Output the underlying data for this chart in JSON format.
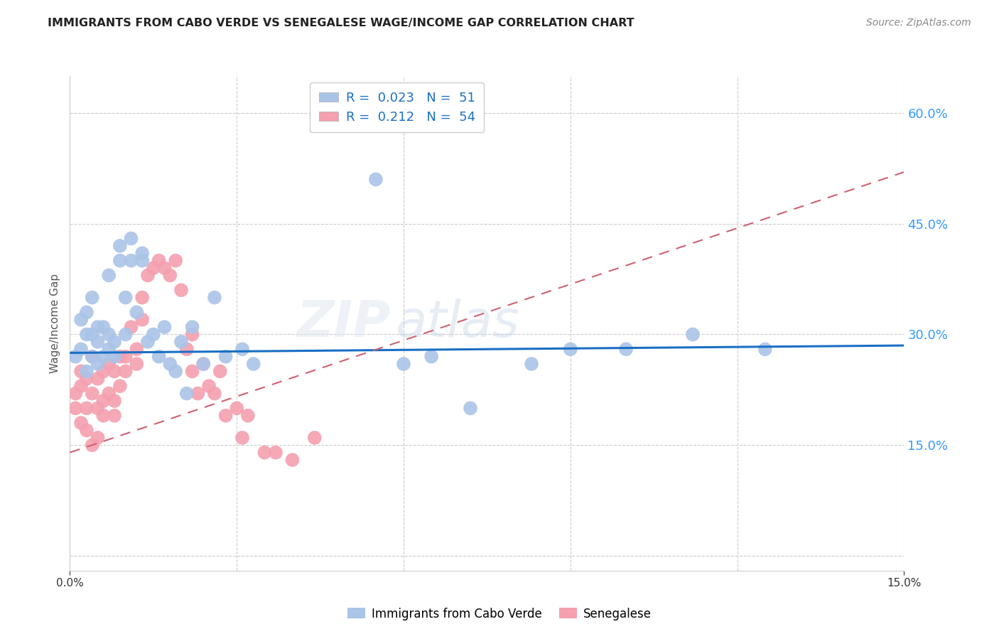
{
  "title": "IMMIGRANTS FROM CABO VERDE VS SENEGALESE WAGE/INCOME GAP CORRELATION CHART",
  "source": "Source: ZipAtlas.com",
  "ylabel": "Wage/Income Gap",
  "xlabel": "",
  "xlim": [
    0.0,
    0.15
  ],
  "ylim": [
    -0.02,
    0.65
  ],
  "ytick_vals": [
    0.0,
    0.15,
    0.3,
    0.45,
    0.6
  ],
  "ytick_labels": [
    "",
    "15.0%",
    "30.0%",
    "45.0%",
    "60.0%"
  ],
  "xtick_vals": [
    0.0,
    0.15
  ],
  "xtick_labels": [
    "0.0%",
    "15.0%"
  ],
  "grid_xtick_vals": [
    0.03,
    0.06,
    0.09,
    0.12
  ],
  "background_color": "#ffffff",
  "grid_color": "#cccccc",
  "cabo_verde_color": "#aac4e8",
  "cabo_verde_edge": "#7aaad4",
  "senegalese_color": "#f4a0b0",
  "senegalese_edge": "#e07090",
  "cabo_verde_R": "0.023",
  "cabo_verde_N": "51",
  "senegalese_R": "0.212",
  "senegalese_N": "54",
  "cabo_verde_trend_color": "#1a6fc4",
  "senegalese_trend_color": "#d06070",
  "right_tick_color": "#3399ff",
  "cabo_verde_x": [
    0.001,
    0.002,
    0.002,
    0.003,
    0.003,
    0.003,
    0.004,
    0.004,
    0.004,
    0.005,
    0.005,
    0.005,
    0.006,
    0.006,
    0.007,
    0.007,
    0.007,
    0.008,
    0.008,
    0.009,
    0.009,
    0.01,
    0.01,
    0.011,
    0.011,
    0.012,
    0.013,
    0.013,
    0.014,
    0.015,
    0.016,
    0.017,
    0.018,
    0.019,
    0.02,
    0.021,
    0.022,
    0.024,
    0.026,
    0.028,
    0.031,
    0.033,
    0.055,
    0.06,
    0.065,
    0.072,
    0.083,
    0.09,
    0.1,
    0.112,
    0.125
  ],
  "cabo_verde_y": [
    0.27,
    0.32,
    0.28,
    0.25,
    0.3,
    0.33,
    0.27,
    0.3,
    0.35,
    0.26,
    0.29,
    0.31,
    0.27,
    0.31,
    0.28,
    0.3,
    0.38,
    0.27,
    0.29,
    0.4,
    0.42,
    0.3,
    0.35,
    0.4,
    0.43,
    0.33,
    0.4,
    0.41,
    0.29,
    0.3,
    0.27,
    0.31,
    0.26,
    0.25,
    0.29,
    0.22,
    0.31,
    0.26,
    0.35,
    0.27,
    0.28,
    0.26,
    0.51,
    0.26,
    0.27,
    0.2,
    0.26,
    0.28,
    0.28,
    0.3,
    0.28
  ],
  "senegalese_x": [
    0.001,
    0.001,
    0.002,
    0.002,
    0.002,
    0.003,
    0.003,
    0.003,
    0.004,
    0.004,
    0.004,
    0.005,
    0.005,
    0.005,
    0.006,
    0.006,
    0.006,
    0.007,
    0.007,
    0.008,
    0.008,
    0.008,
    0.009,
    0.009,
    0.01,
    0.01,
    0.011,
    0.012,
    0.012,
    0.013,
    0.013,
    0.014,
    0.015,
    0.016,
    0.017,
    0.018,
    0.019,
    0.02,
    0.021,
    0.022,
    0.022,
    0.023,
    0.024,
    0.025,
    0.026,
    0.027,
    0.028,
    0.03,
    0.031,
    0.032,
    0.035,
    0.037,
    0.04,
    0.044
  ],
  "senegalese_y": [
    0.22,
    0.2,
    0.25,
    0.18,
    0.23,
    0.24,
    0.2,
    0.17,
    0.27,
    0.22,
    0.15,
    0.24,
    0.2,
    0.16,
    0.21,
    0.25,
    0.19,
    0.26,
    0.22,
    0.25,
    0.21,
    0.19,
    0.27,
    0.23,
    0.25,
    0.27,
    0.31,
    0.28,
    0.26,
    0.32,
    0.35,
    0.38,
    0.39,
    0.4,
    0.39,
    0.38,
    0.4,
    0.36,
    0.28,
    0.25,
    0.3,
    0.22,
    0.26,
    0.23,
    0.22,
    0.25,
    0.19,
    0.2,
    0.16,
    0.19,
    0.14,
    0.14,
    0.13,
    0.16
  ],
  "cabo_verde_trend_x": [
    0.0,
    0.15
  ],
  "cabo_verde_trend_y": [
    0.275,
    0.285
  ],
  "senegalese_trend_x": [
    0.0,
    0.15
  ],
  "senegalese_trend_y": [
    0.14,
    0.52
  ]
}
